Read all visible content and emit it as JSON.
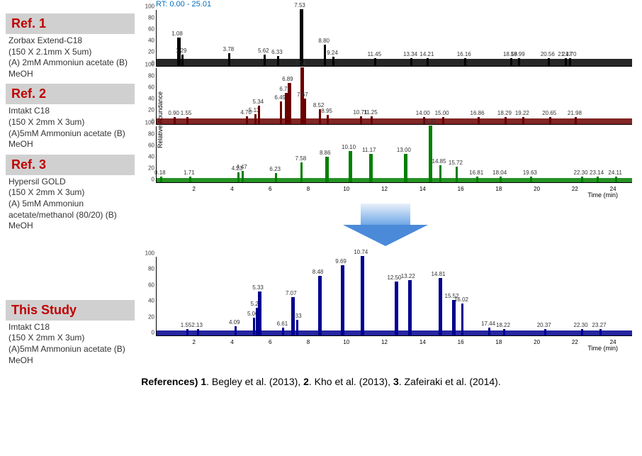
{
  "rt_label": "RT: 0.00 - 25.01",
  "y_ticks": [
    0,
    20,
    40,
    60,
    80,
    100
  ],
  "x_range": 25,
  "y_axis_label": "Relative Abundance",
  "x_axis_label": "Time (min)",
  "x_ticks": [
    2,
    4,
    6,
    8,
    10,
    12,
    14,
    16,
    18,
    20,
    22,
    24
  ],
  "refs": [
    {
      "header": "Ref. 1",
      "line1": "Zorbax Extend-C18",
      "line2": "(150 X 2.1mm X 5um)",
      "line3": "(A) 2mM Ammoniun acetate (B) MeOH",
      "red": true
    },
    {
      "header": "Ref. 2",
      "line1": "Imtakt C18",
      "line2": "(150 X 2mm X 3um)",
      "line3": "(A)5mM Ammoniun acetate (B) MeOH",
      "red": true
    },
    {
      "header": "Ref. 3",
      "line1": "Hypersil GOLD",
      "line2": "(150 X 2mm X 3um)",
      "line3": "(A) 5mM Ammoniun acetate/methanol (80/20)  (B) MeOH",
      "red": true
    },
    {
      "header": "This Study",
      "line1": "Imtakt C18",
      "line2": "(150 X 2mm X 3um)",
      "line3": "(A)5mM Ammoniun acetate (B) MeOH",
      "red": true
    }
  ],
  "charts": [
    {
      "color": "#000000",
      "baseline": 12,
      "peaks": [
        {
          "rt": 1.08,
          "h": 50
        },
        {
          "rt": 1.29,
          "h": 20
        },
        {
          "rt": 3.78,
          "h": 22
        },
        {
          "rt": 5.62,
          "h": 20
        },
        {
          "rt": 6.33,
          "h": 18
        },
        {
          "rt": 7.53,
          "h": 100
        },
        {
          "rt": 8.8,
          "h": 38
        },
        {
          "rt": 9.24,
          "h": 16
        },
        {
          "rt": 11.45,
          "h": 14
        },
        {
          "rt": 13.34,
          "h": 14
        },
        {
          "rt": 14.21,
          "h": 14
        },
        {
          "rt": 16.16,
          "h": 14
        },
        {
          "rt": 18.59,
          "h": 14
        },
        {
          "rt": 18.99,
          "h": 14
        },
        {
          "rt": 20.56,
          "h": 14
        },
        {
          "rt": 21.47,
          "h": 14
        },
        {
          "rt": 21.7,
          "h": 14
        }
      ]
    },
    {
      "color": "#6b0000",
      "baseline": 10,
      "peaks": [
        {
          "rt": 0.9,
          "h": 12
        },
        {
          "rt": 1.55,
          "h": 12
        },
        {
          "rt": 4.7,
          "h": 14
        },
        {
          "rt": 5.13,
          "h": 18
        },
        {
          "rt": 5.34,
          "h": 32
        },
        {
          "rt": 6.49,
          "h": 40
        },
        {
          "rt": 6.75,
          "h": 55
        },
        {
          "rt": 6.89,
          "h": 72
        },
        {
          "rt": 7.56,
          "h": 100
        },
        {
          "rt": 7.67,
          "h": 45
        },
        {
          "rt": 8.52,
          "h": 26
        },
        {
          "rt": 8.95,
          "h": 16
        },
        {
          "rt": 10.71,
          "h": 14
        },
        {
          "rt": 11.25,
          "h": 14
        },
        {
          "rt": 14.0,
          "h": 12
        },
        {
          "rt": 15.0,
          "h": 12
        },
        {
          "rt": 16.86,
          "h": 12
        },
        {
          "rt": 18.29,
          "h": 12
        },
        {
          "rt": 19.22,
          "h": 12
        },
        {
          "rt": 20.65,
          "h": 12
        },
        {
          "rt": 21.98,
          "h": 12
        }
      ]
    },
    {
      "color": "#008000",
      "baseline": 8,
      "peaks": [
        {
          "rt": 0.18,
          "h": 10
        },
        {
          "rt": 1.71,
          "h": 10
        },
        {
          "rt": 4.23,
          "h": 18
        },
        {
          "rt": 4.47,
          "h": 20
        },
        {
          "rt": 6.23,
          "h": 16
        },
        {
          "rt": 7.58,
          "h": 35
        },
        {
          "rt": 8.86,
          "h": 45
        },
        {
          "rt": 10.1,
          "h": 55
        },
        {
          "rt": 11.17,
          "h": 50
        },
        {
          "rt": 13.0,
          "h": 50
        },
        {
          "rt": 14.32,
          "h": 100
        },
        {
          "rt": 14.85,
          "h": 30
        },
        {
          "rt": 15.72,
          "h": 28
        },
        {
          "rt": 16.81,
          "h": 10
        },
        {
          "rt": 18.04,
          "h": 10
        },
        {
          "rt": 19.63,
          "h": 10
        },
        {
          "rt": 22.3,
          "h": 10
        },
        {
          "rt": 23.14,
          "h": 10
        },
        {
          "rt": 24.11,
          "h": 10
        }
      ]
    },
    {
      "color": "#000090",
      "baseline": 6,
      "peaks": [
        {
          "rt": 1.55,
          "h": 8
        },
        {
          "rt": 2.13,
          "h": 8
        },
        {
          "rt": 4.09,
          "h": 12
        },
        {
          "rt": 5.06,
          "h": 22
        },
        {
          "rt": 5.23,
          "h": 35
        },
        {
          "rt": 5.33,
          "h": 55
        },
        {
          "rt": 6.61,
          "h": 10
        },
        {
          "rt": 7.07,
          "h": 48
        },
        {
          "rt": 7.33,
          "h": 20
        },
        {
          "rt": 8.48,
          "h": 75
        },
        {
          "rt": 9.69,
          "h": 88
        },
        {
          "rt": 10.74,
          "h": 100
        },
        {
          "rt": 12.5,
          "h": 68
        },
        {
          "rt": 13.22,
          "h": 70
        },
        {
          "rt": 14.81,
          "h": 72
        },
        {
          "rt": 15.52,
          "h": 45
        },
        {
          "rt": 16.02,
          "h": 40
        },
        {
          "rt": 17.44,
          "h": 10
        },
        {
          "rt": 18.22,
          "h": 8
        },
        {
          "rt": 20.37,
          "h": 8
        },
        {
          "rt": 22.3,
          "h": 8
        },
        {
          "rt": 23.27,
          "h": 8
        }
      ]
    }
  ],
  "references_text": {
    "label": "References)",
    "items": [
      {
        "n": "1",
        "t": ". Begley et al. (2013), "
      },
      {
        "n": "2",
        "t": ". Kho et al. (2013), "
      },
      {
        "n": "3",
        "t": ". Zafeiraki et al. (2014)."
      }
    ]
  }
}
